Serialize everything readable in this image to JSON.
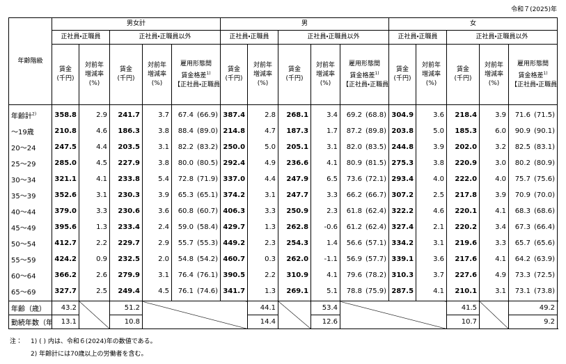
{
  "header": {
    "year": "令和７(2025)年",
    "row_label": "年齢階級",
    "groups": [
      "男女計",
      "男",
      "女"
    ],
    "subgroups": [
      "正社員・正職員",
      "正社員・正職員以外"
    ],
    "columns": {
      "wage": [
        "賃金",
        "(千円)"
      ],
      "change": [
        "対前年",
        "増減率",
        "(%)"
      ],
      "gap": [
        "雇用形態間",
        "賃金格差",
        "1)",
        "【正社員・正職員=100】"
      ]
    }
  },
  "table": {
    "rows": [
      {
        "label": "年齢計",
        "note": "2)",
        "cells": [
          "358.8",
          "2.9",
          "241.7",
          "3.7",
          "67.4",
          "(66.9)",
          "387.4",
          "2.8",
          "268.1",
          "3.4",
          "69.2",
          "(68.8)",
          "304.9",
          "3.6",
          "218.4",
          "3.9",
          "71.6",
          "(71.5)"
        ]
      },
      {
        "label": "～19歳",
        "cells": [
          "210.8",
          "4.6",
          "186.3",
          "3.8",
          "88.4",
          "(89.0)",
          "214.8",
          "4.7",
          "187.3",
          "1.7",
          "87.2",
          "(89.8)",
          "203.8",
          "5.0",
          "185.3",
          "6.0",
          "90.9",
          "(90.1)"
        ]
      },
      {
        "label": "20～24",
        "cells": [
          "247.5",
          "4.4",
          "203.5",
          "3.1",
          "82.2",
          "(83.2)",
          "250.0",
          "5.0",
          "205.1",
          "3.1",
          "82.0",
          "(83.5)",
          "244.8",
          "3.9",
          "202.0",
          "3.2",
          "82.5",
          "(83.1)"
        ]
      },
      {
        "label": "25～29",
        "cells": [
          "285.0",
          "4.5",
          "227.9",
          "3.8",
          "80.0",
          "(80.5)",
          "292.4",
          "4.9",
          "236.6",
          "4.1",
          "80.9",
          "(81.5)",
          "275.3",
          "3.8",
          "220.9",
          "3.0",
          "80.2",
          "(80.9)"
        ]
      },
      {
        "label": "30～34",
        "cells": [
          "321.1",
          "4.1",
          "233.8",
          "5.4",
          "72.8",
          "(71.9)",
          "337.0",
          "4.4",
          "247.9",
          "6.5",
          "73.6",
          "(72.1)",
          "293.4",
          "4.0",
          "222.0",
          "4.0",
          "75.7",
          "(75.6)"
        ]
      },
      {
        "label": "35～39",
        "cells": [
          "352.6",
          "3.1",
          "230.3",
          "3.9",
          "65.3",
          "(65.1)",
          "374.2",
          "3.1",
          "247.7",
          "3.3",
          "66.2",
          "(66.7)",
          "307.2",
          "2.5",
          "217.8",
          "3.9",
          "70.9",
          "(70.0)"
        ]
      },
      {
        "label": "40～44",
        "cells": [
          "379.0",
          "3.3",
          "230.6",
          "3.6",
          "60.8",
          "(60.7)",
          "406.3",
          "3.3",
          "250.9",
          "2.3",
          "61.8",
          "(62.4)",
          "322.2",
          "4.6",
          "220.1",
          "4.1",
          "68.3",
          "(68.6)"
        ]
      },
      {
        "label": "45～49",
        "cells": [
          "395.6",
          "1.3",
          "233.4",
          "2.4",
          "59.0",
          "(58.4)",
          "429.7",
          "1.3",
          "262.8",
          "-0.6",
          "61.2",
          "(62.4)",
          "327.4",
          "2.1",
          "220.2",
          "3.4",
          "67.3",
          "(66.4)"
        ]
      },
      {
        "label": "50～54",
        "cells": [
          "412.7",
          "2.2",
          "229.7",
          "2.9",
          "55.7",
          "(55.3)",
          "449.2",
          "2.3",
          "254.3",
          "1.4",
          "56.6",
          "(57.1)",
          "334.2",
          "3.1",
          "219.6",
          "3.3",
          "65.7",
          "(65.6)"
        ]
      },
      {
        "label": "55～59",
        "cells": [
          "424.2",
          "0.9",
          "232.5",
          "2.0",
          "54.8",
          "(54.2)",
          "460.7",
          "0.3",
          "262.0",
          "-1.1",
          "56.9",
          "(57.7)",
          "339.1",
          "3.6",
          "217.6",
          "4.1",
          "64.2",
          "(63.9)"
        ]
      },
      {
        "label": "60～64",
        "cells": [
          "366.2",
          "2.6",
          "279.9",
          "3.1",
          "76.4",
          "(76.1)",
          "390.5",
          "2.2",
          "310.9",
          "4.1",
          "79.6",
          "(78.2)",
          "310.3",
          "3.7",
          "227.6",
          "4.9",
          "73.3",
          "(72.5)"
        ]
      },
      {
        "label": "65～69",
        "cells": [
          "327.7",
          "2.5",
          "249.4",
          "4.5",
          "76.1",
          "(74.6)",
          "341.7",
          "1.3",
          "269.1",
          "5.1",
          "78.8",
          "(75.9)",
          "287.5",
          "4.1",
          "210.1",
          "3.1",
          "73.1",
          "(73.8)"
        ]
      }
    ]
  },
  "summary": [
    {
      "label": "年齢（歳）",
      "values": [
        "43.2",
        "51.2",
        "44.1",
        "53.4",
        "41.5",
        "49.2"
      ]
    },
    {
      "label": "勤続年数（年）",
      "values": [
        "13.1",
        "10.8",
        "14.4",
        "12.6",
        "10.7",
        "9.2"
      ]
    }
  ],
  "notes": {
    "prefix": "注：",
    "items": [
      "1) ( ) 内は、令和６(2024)年の数値である。",
      "2) 年齢計には70歳以上の労働者を含む。"
    ]
  }
}
